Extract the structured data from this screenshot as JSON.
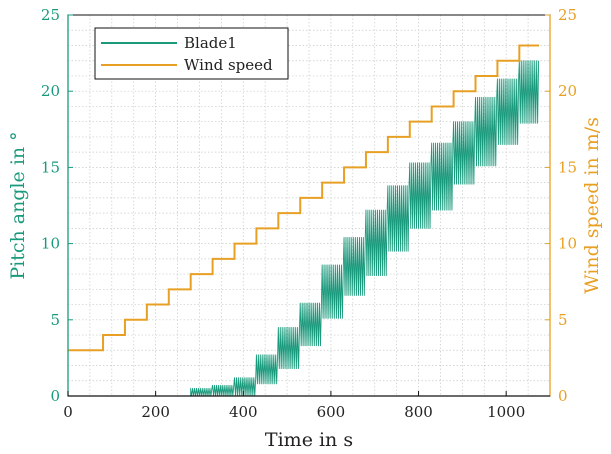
{
  "chart_data": {
    "type": "line",
    "xlabel": "Time in s",
    "ylabel_left": "Pitch angle in °",
    "ylabel_right": "Wind speed in m/s",
    "xlim": [
      0,
      1100
    ],
    "ylim_left": [
      0,
      25
    ],
    "ylim_right": [
      0,
      25
    ],
    "x_ticks": [
      "0",
      "200",
      "400",
      "600",
      "800",
      "1000"
    ],
    "y_ticks_left": [
      "0",
      "5",
      "10",
      "15",
      "20",
      "25"
    ],
    "y_ticks_right": [
      "0",
      "5",
      "10",
      "15",
      "20",
      "25"
    ],
    "grid": true,
    "legend_position": "top-left",
    "colors": {
      "blade": "#1a9a7c",
      "wind": "#e8a024",
      "axis_left": "#1a9a7c",
      "axis_right": "#e8a024"
    },
    "series": [
      {
        "name": "Blade1",
        "axis": "left",
        "oscillating": true,
        "segments": [
          {
            "t": [
              0,
              280
            ],
            "min": 0,
            "max": 0
          },
          {
            "t": [
              280,
              330
            ],
            "min": 0,
            "max": 0.5
          },
          {
            "t": [
              330,
              380
            ],
            "min": 0,
            "max": 0.7
          },
          {
            "t": [
              380,
              430
            ],
            "min": 0,
            "max": 1.2
          },
          {
            "t": [
              430,
              480
            ],
            "min": 0.8,
            "max": 2.7
          },
          {
            "t": [
              480,
              530
            ],
            "min": 1.8,
            "max": 4.5
          },
          {
            "t": [
              530,
              580
            ],
            "min": 3.3,
            "max": 6.1
          },
          {
            "t": [
              580,
              630
            ],
            "min": 5.1,
            "max": 8.6
          },
          {
            "t": [
              630,
              680
            ],
            "min": 6.6,
            "max": 10.4
          },
          {
            "t": [
              680,
              730
            ],
            "min": 7.9,
            "max": 12.2
          },
          {
            "t": [
              730,
              780
            ],
            "min": 9.5,
            "max": 13.8
          },
          {
            "t": [
              780,
              830
            ],
            "min": 11.0,
            "max": 15.3
          },
          {
            "t": [
              830,
              880
            ],
            "min": 12.2,
            "max": 16.6
          },
          {
            "t": [
              880,
              930
            ],
            "min": 13.9,
            "max": 18.0
          },
          {
            "t": [
              930,
              980
            ],
            "min": 15.1,
            "max": 19.6
          },
          {
            "t": [
              980,
              1030
            ],
            "min": 16.5,
            "max": 20.8
          },
          {
            "t": [
              1030,
              1075
            ],
            "min": 17.9,
            "max": 22.0
          }
        ]
      },
      {
        "name": "Wind speed",
        "axis": "right",
        "x": [
          0,
          80,
          80,
          130,
          130,
          180,
          180,
          230,
          230,
          280,
          280,
          330,
          330,
          380,
          380,
          430,
          430,
          480,
          480,
          530,
          530,
          580,
          580,
          630,
          630,
          680,
          680,
          730,
          730,
          780,
          780,
          830,
          830,
          880,
          880,
          930,
          930,
          980,
          980,
          1030,
          1030,
          1075
        ],
        "y": [
          3,
          3,
          4,
          4,
          5,
          5,
          6,
          6,
          7,
          7,
          8,
          8,
          9,
          9,
          10,
          10,
          11,
          11,
          12,
          12,
          13,
          13,
          14,
          14,
          15,
          15,
          16,
          16,
          17,
          17,
          18,
          18,
          19,
          19,
          20,
          20,
          21,
          21,
          22,
          22,
          23,
          23
        ]
      }
    ]
  }
}
